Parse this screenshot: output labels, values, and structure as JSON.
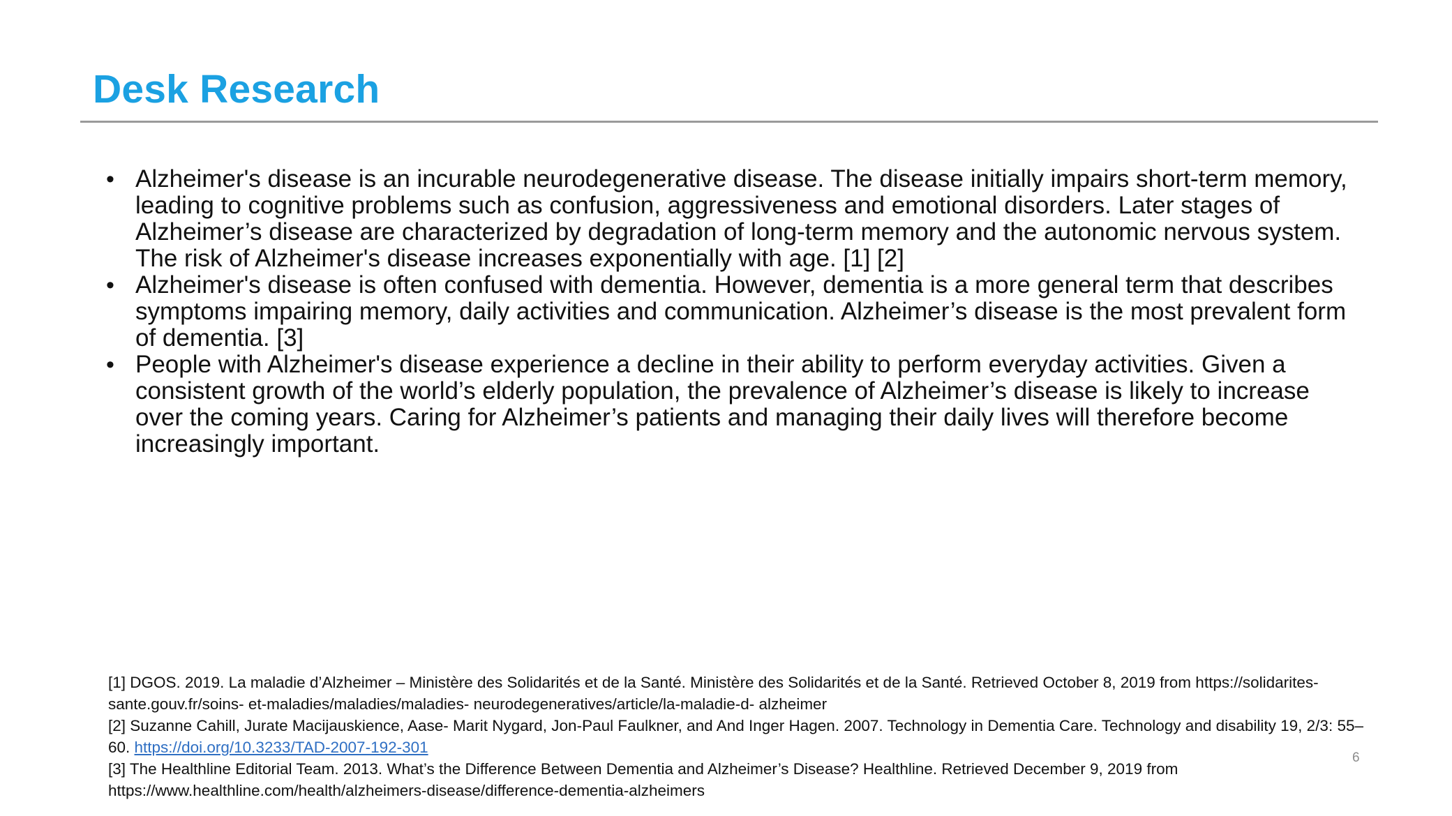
{
  "slide": {
    "title": "Desk Research",
    "bullets": [
      {
        "marker": "•",
        "text": "Alzheimer's disease is an incurable neurodegenerative disease. The disease initially impairs short-term memory, leading to cognitive problems such as confusion, aggressiveness and emotional disorders. Later stages of Alzheimer’s disease are characterized by degradation of long-term memory and the autonomic nervous system. The risk of Alzheimer's disease increases exponentially with age. [1] [2]"
      },
      {
        "marker": "•",
        "text": "Alzheimer's disease is often confused with dementia. However, dementia is a more general term that describes symptoms impairing memory, daily activities and communication. Alzheimer’s disease is the most prevalent form of dementia. [3]"
      },
      {
        "marker": "•",
        "text": "People with Alzheimer's disease experience a decline in their ability to perform everyday activities. Given a consistent growth of the world’s elderly population, the prevalence of Alzheimer’s disease is likely to increase over the coming years. Caring for Alzheimer’s patients and managing their daily lives will therefore become increasingly important."
      }
    ],
    "references": [
      {
        "text": "[1] DGOS. 2019. La maladie d’Alzheimer – Ministère des Solidarités et de la Santé. Ministère des Solidarités et de la Santé. Retrieved October 8, 2019 from https://solidarites-sante.gouv.fr/soins- et-maladies/maladies/maladies- neurodegeneratives/article/la-maladie-d- alzheimer"
      },
      {
        "text": "[2] Suzanne Cahill, Jurate Macijauskience, Aase- Marit Nygard, Jon-Paul Faulkner, and And Inger Hagen. 2007. Technology in Dementia Care. Technology and disability 19, 2/3: 55–60. ",
        "link": "https://doi.org/10.3233/TAD-2007-192-301"
      },
      {
        "text": "[3] The Healthline Editorial Team. 2013. What’s the Difference Between Dementia and Alzheimer’s Disease? Healthline. Retrieved December 9, 2019 from https://www.healthline.com/health/alzheimers-disease/difference-dementia-alzheimers"
      }
    ],
    "page_number": "6",
    "colors": {
      "title": "#1ba1e2",
      "divider": "#9a9a9a",
      "link": "#2f6fc3",
      "page_number": "#8c8c8c"
    }
  }
}
